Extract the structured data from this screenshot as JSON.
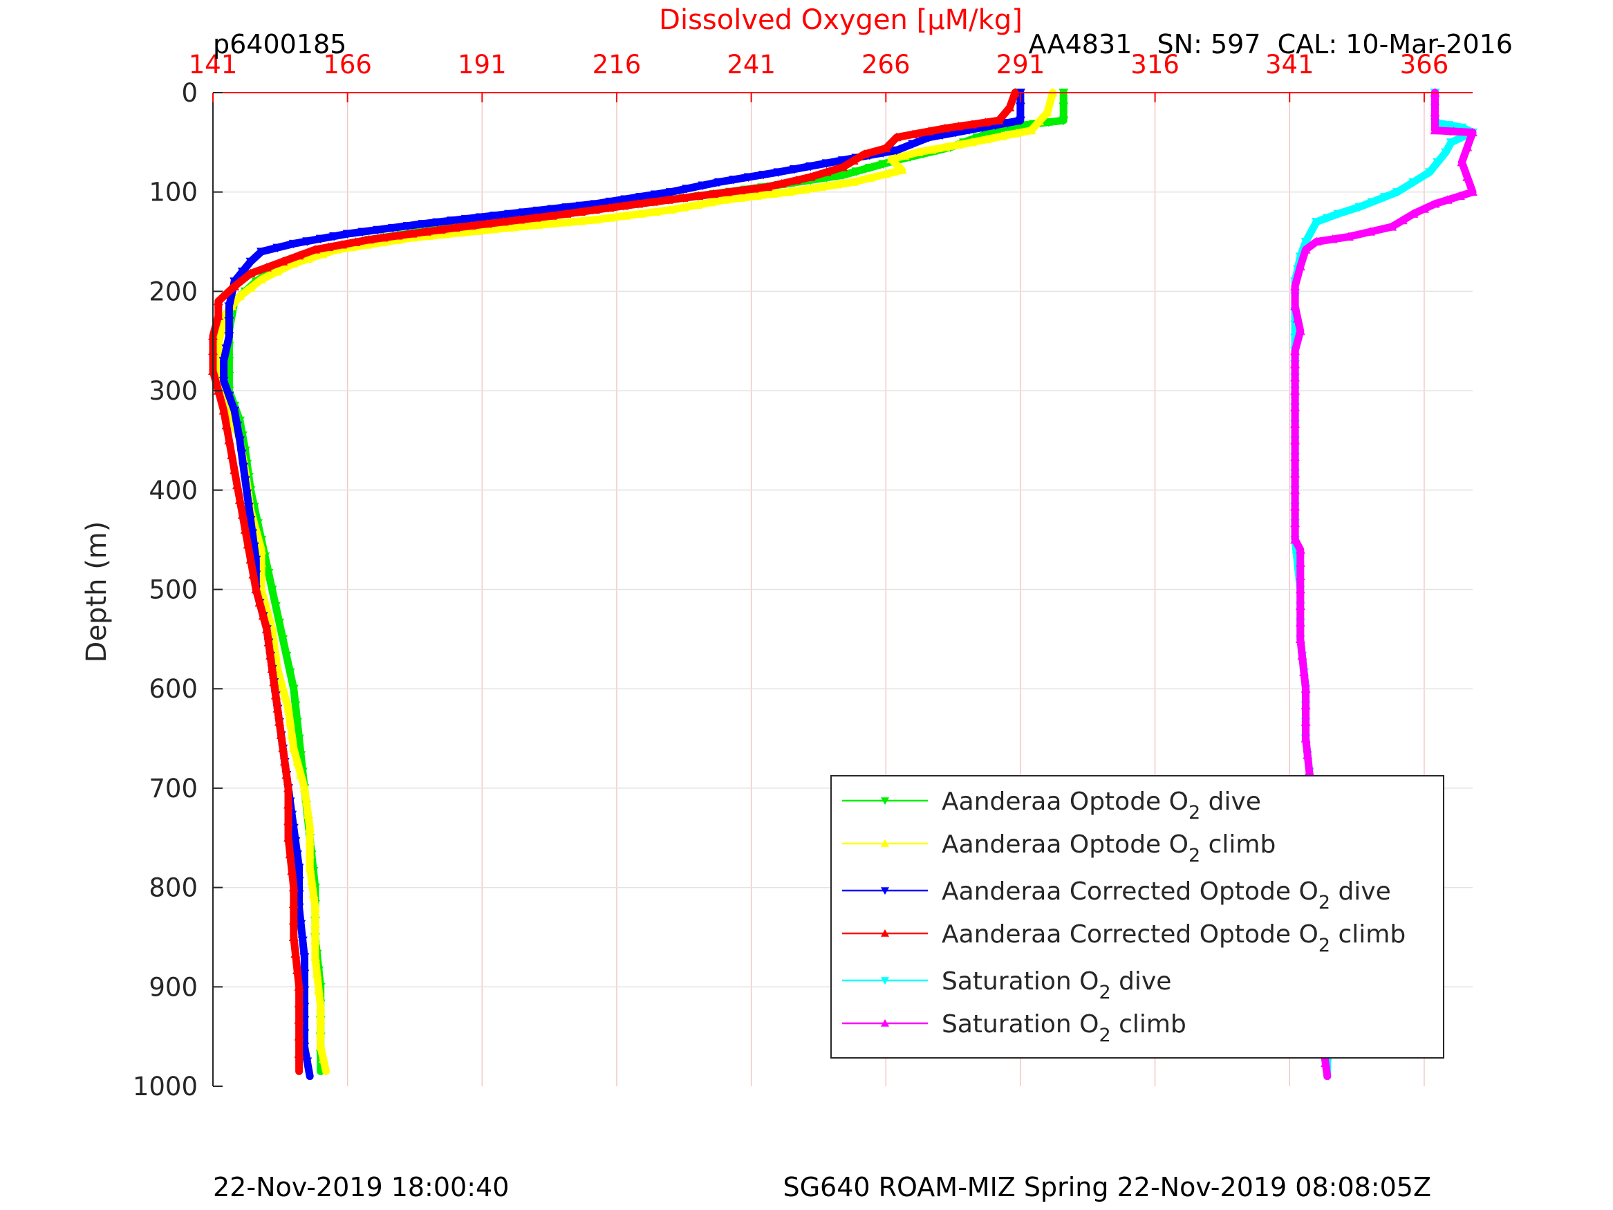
{
  "header": {
    "profile_id": "p6400185",
    "sensor_info": "AA4831   SN: 597  CAL: 10-Mar-2016"
  },
  "footer": {
    "plot_time": "22-Nov-2019 18:00:40",
    "mission": "SG640 ROAM-MIZ Spring 22-Nov-2019 08:08:05Z"
  },
  "chart_data": {
    "type": "line",
    "xlabel": "Dissolved Oxygen [µM/kg]",
    "ylabel": "Depth (m)",
    "xlim": [
      141,
      375
    ],
    "ylim": [
      0,
      1000
    ],
    "y_reversed": true,
    "x_axis_position": "top",
    "grid": true,
    "legend_position": "bottom-right",
    "x_ticks": [
      141,
      166,
      191,
      216,
      241,
      266,
      291,
      316,
      341,
      366
    ],
    "y_ticks": [
      0,
      100,
      200,
      300,
      400,
      500,
      600,
      700,
      800,
      900,
      1000
    ],
    "colors": {
      "axis_top": "#ff0000",
      "grid_vertical": "#f2c8c8",
      "grid_horizontal": "#e3e3e3"
    },
    "series": [
      {
        "name": "Aanderaa Optode O",
        "subscript": "2",
        "suffix": " dive",
        "color": "#00ee00",
        "marker": "triangle-down",
        "points": [
          [
            299,
            0
          ],
          [
            299,
            28
          ],
          [
            288,
            35
          ],
          [
            278,
            55
          ],
          [
            268,
            68
          ],
          [
            258,
            83
          ],
          [
            246,
            93
          ],
          [
            234,
            102
          ],
          [
            220,
            112
          ],
          [
            206,
            122
          ],
          [
            194,
            130
          ],
          [
            182,
            138
          ],
          [
            170,
            148
          ],
          [
            162,
            158
          ],
          [
            154,
            172
          ],
          [
            149,
            190
          ],
          [
            145,
            210
          ],
          [
            144,
            240
          ],
          [
            144,
            270
          ],
          [
            144,
            300
          ],
          [
            146,
            330
          ],
          [
            147,
            360
          ],
          [
            148,
            400
          ],
          [
            150,
            450
          ],
          [
            152,
            500
          ],
          [
            154,
            550
          ],
          [
            156,
            600
          ],
          [
            157,
            650
          ],
          [
            158,
            700
          ],
          [
            159,
            750
          ],
          [
            160,
            800
          ],
          [
            160,
            850
          ],
          [
            161,
            900
          ],
          [
            161,
            950
          ],
          [
            161,
            985
          ]
        ]
      },
      {
        "name": "Aanderaa Optode O",
        "subscript": "2",
        "suffix": " climb",
        "color": "#ffff00",
        "marker": "triangle-up",
        "points": [
          [
            297,
            0
          ],
          [
            296,
            20
          ],
          [
            293,
            38
          ],
          [
            282,
            50
          ],
          [
            272,
            60
          ],
          [
            267,
            67
          ],
          [
            269,
            78
          ],
          [
            260,
            90
          ],
          [
            248,
            100
          ],
          [
            236,
            108
          ],
          [
            226,
            118
          ],
          [
            212,
            128
          ],
          [
            196,
            136
          ],
          [
            178,
            146
          ],
          [
            164,
            158
          ],
          [
            156,
            172
          ],
          [
            150,
            188
          ],
          [
            146,
            205
          ],
          [
            143,
            225
          ],
          [
            142,
            255
          ],
          [
            142,
            290
          ],
          [
            144,
            320
          ],
          [
            146,
            350
          ],
          [
            147,
            380
          ],
          [
            148,
            420
          ],
          [
            150,
            460
          ],
          [
            150,
            500
          ],
          [
            152,
            540
          ],
          [
            153,
            580
          ],
          [
            155,
            620
          ],
          [
            156,
            660
          ],
          [
            158,
            700
          ],
          [
            159,
            740
          ],
          [
            159,
            780
          ],
          [
            160,
            820
          ],
          [
            160,
            870
          ],
          [
            161,
            920
          ],
          [
            161,
            960
          ],
          [
            162,
            985
          ]
        ]
      },
      {
        "name": "Aanderaa Corrected Optode O",
        "subscript": "2",
        "suffix": " dive",
        "color": "#0000ff",
        "marker": "triangle-down",
        "points": [
          [
            291,
            0
          ],
          [
            291,
            28
          ],
          [
            284,
            35
          ],
          [
            274,
            45
          ],
          [
            268,
            58
          ],
          [
            258,
            68
          ],
          [
            246,
            80
          ],
          [
            235,
            90
          ],
          [
            226,
            100
          ],
          [
            212,
            112
          ],
          [
            196,
            122
          ],
          [
            180,
            132
          ],
          [
            166,
            142
          ],
          [
            156,
            152
          ],
          [
            150,
            160
          ],
          [
            148,
            170
          ],
          [
            145,
            190
          ],
          [
            144,
            215
          ],
          [
            144,
            245
          ],
          [
            143,
            270
          ],
          [
            143,
            290
          ],
          [
            145,
            320
          ],
          [
            146,
            350
          ],
          [
            147,
            390
          ],
          [
            148,
            430
          ],
          [
            149,
            470
          ],
          [
            149,
            500
          ],
          [
            151,
            540
          ],
          [
            152,
            580
          ],
          [
            153,
            620
          ],
          [
            154,
            660
          ],
          [
            155,
            700
          ],
          [
            156,
            740
          ],
          [
            157,
            780
          ],
          [
            157,
            820
          ],
          [
            158,
            870
          ],
          [
            158,
            920
          ],
          [
            158,
            960
          ],
          [
            159,
            990
          ]
        ]
      },
      {
        "name": "Aanderaa Corrected Optode O",
        "subscript": "2",
        "suffix": " climb",
        "color": "#ff0000",
        "marker": "triangle-up",
        "points": [
          [
            290,
            0
          ],
          [
            289,
            15
          ],
          [
            287,
            28
          ],
          [
            277,
            36
          ],
          [
            268,
            45
          ],
          [
            266,
            56
          ],
          [
            262,
            62
          ],
          [
            258,
            75
          ],
          [
            252,
            85
          ],
          [
            244,
            95
          ],
          [
            234,
            102
          ],
          [
            220,
            112
          ],
          [
            204,
            124
          ],
          [
            186,
            136
          ],
          [
            170,
            148
          ],
          [
            160,
            158
          ],
          [
            154,
            170
          ],
          [
            148,
            182
          ],
          [
            145,
            195
          ],
          [
            142,
            210
          ],
          [
            142,
            225
          ],
          [
            141,
            245
          ],
          [
            141,
            260
          ],
          [
            141,
            280
          ],
          [
            142,
            300
          ],
          [
            143,
            320
          ],
          [
            144,
            350
          ],
          [
            145,
            380
          ],
          [
            146,
            410
          ],
          [
            147,
            440
          ],
          [
            148,
            470
          ],
          [
            149,
            500
          ],
          [
            151,
            540
          ],
          [
            152,
            580
          ],
          [
            153,
            620
          ],
          [
            154,
            660
          ],
          [
            155,
            700
          ],
          [
            155,
            750
          ],
          [
            156,
            800
          ],
          [
            156,
            850
          ],
          [
            157,
            900
          ],
          [
            157,
            950
          ],
          [
            157,
            985
          ]
        ]
      },
      {
        "name": "Saturation O",
        "subscript": "2",
        "suffix": " dive",
        "color": "#00ffff",
        "marker": "triangle-down",
        "points": [
          [
            368,
            0
          ],
          [
            368,
            30
          ],
          [
            373,
            35
          ],
          [
            375,
            40
          ],
          [
            371,
            50
          ],
          [
            370,
            60
          ],
          [
            367,
            80
          ],
          [
            364,
            90
          ],
          [
            361,
            100
          ],
          [
            354,
            115
          ],
          [
            350,
            122
          ],
          [
            346,
            130
          ],
          [
            344,
            150
          ],
          [
            343,
            165
          ],
          [
            342,
            190
          ],
          [
            342,
            220
          ],
          [
            342,
            260
          ],
          [
            342,
            300
          ],
          [
            342,
            350
          ],
          [
            342,
            400
          ],
          [
            342,
            450
          ],
          [
            343,
            500
          ],
          [
            343,
            550
          ],
          [
            344,
            600
          ],
          [
            344,
            650
          ],
          [
            345,
            700
          ],
          [
            346,
            750
          ],
          [
            346,
            800
          ],
          [
            347,
            850
          ],
          [
            347,
            900
          ],
          [
            348,
            950
          ],
          [
            348,
            990
          ]
        ]
      },
      {
        "name": "Saturation O",
        "subscript": "2",
        "suffix": " climb",
        "color": "#ff00ff",
        "marker": "triangle-up",
        "points": [
          [
            368,
            0
          ],
          [
            368,
            20
          ],
          [
            368,
            38
          ],
          [
            375,
            40
          ],
          [
            373,
            70
          ],
          [
            375,
            100
          ],
          [
            368,
            112
          ],
          [
            364,
            122
          ],
          [
            360,
            135
          ],
          [
            356,
            140
          ],
          [
            352,
            145
          ],
          [
            346,
            150
          ],
          [
            344,
            158
          ],
          [
            343,
            175
          ],
          [
            342,
            195
          ],
          [
            342,
            215
          ],
          [
            343,
            240
          ],
          [
            342,
            260
          ],
          [
            342,
            300
          ],
          [
            342,
            350
          ],
          [
            342,
            400
          ],
          [
            342,
            450
          ],
          [
            343,
            460
          ],
          [
            343,
            500
          ],
          [
            343,
            550
          ],
          [
            344,
            600
          ],
          [
            344,
            650
          ],
          [
            345,
            700
          ],
          [
            345,
            750
          ],
          [
            346,
            800
          ],
          [
            346,
            850
          ],
          [
            346,
            900
          ],
          [
            347,
            950
          ],
          [
            348,
            990
          ]
        ]
      }
    ]
  }
}
